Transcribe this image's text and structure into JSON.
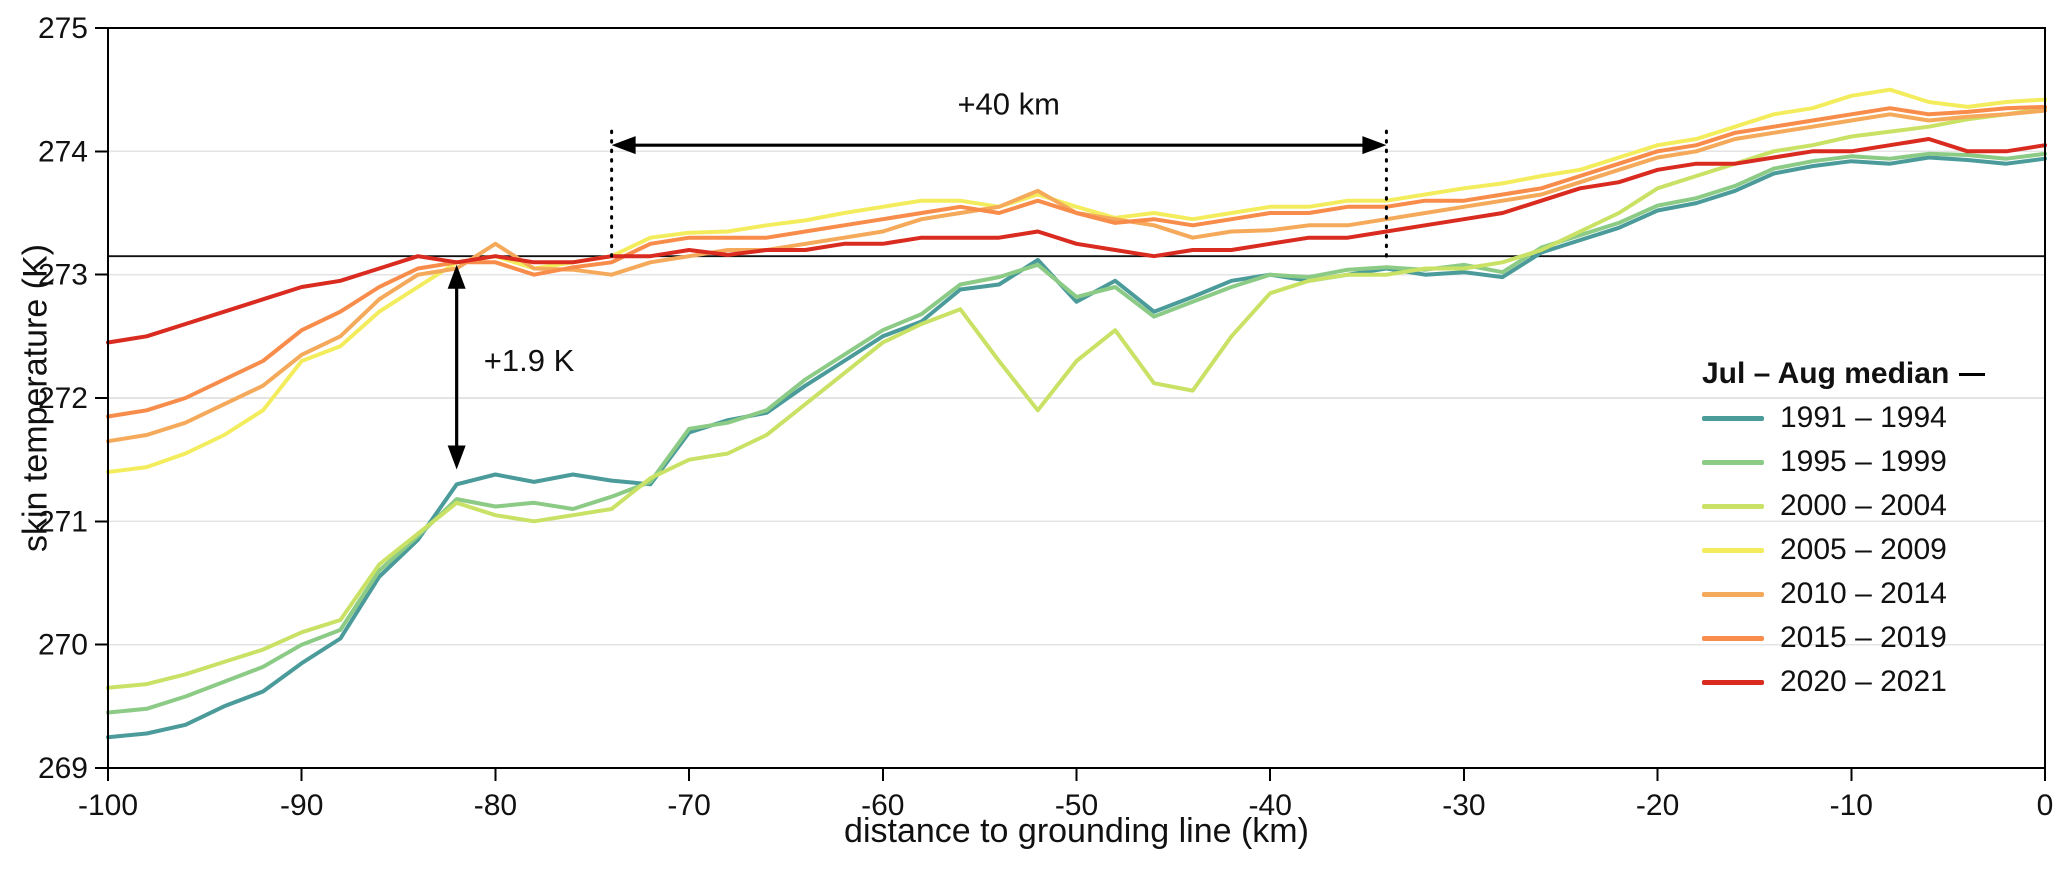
{
  "chart_data": {
    "type": "line",
    "xlabel": "distance to grounding line (km)",
    "ylabel": "skin temperature (K)",
    "xlim": [
      -100,
      0
    ],
    "ylim": [
      269,
      275
    ],
    "xticks": [
      -100,
      -90,
      -80,
      -70,
      -60,
      -50,
      -40,
      -30,
      -20,
      -10,
      0
    ],
    "yticks": [
      269,
      270,
      271,
      272,
      273,
      274,
      275
    ],
    "grid": "horizontal",
    "reference_line_y": 273.15,
    "legend_title": "Jul – Aug median",
    "legend_position": "right",
    "x": [
      -100,
      -98,
      -96,
      -94,
      -92,
      -90,
      -88,
      -86,
      -84,
      -82,
      -80,
      -78,
      -76,
      -74,
      -72,
      -70,
      -68,
      -66,
      -64,
      -62,
      -60,
      -58,
      -56,
      -54,
      -52,
      -50,
      -48,
      -46,
      -44,
      -42,
      -40,
      -38,
      -36,
      -34,
      -32,
      -30,
      -28,
      -26,
      -24,
      -22,
      -20,
      -18,
      -16,
      -14,
      -12,
      -10,
      -8,
      -6,
      -4,
      -2,
      0
    ],
    "series": [
      {
        "name": "1991 – 1994",
        "color": "#4B9B9B",
        "values": [
          269.25,
          269.28,
          269.35,
          269.5,
          269.62,
          269.85,
          270.05,
          270.55,
          270.85,
          271.3,
          271.38,
          271.32,
          271.38,
          271.33,
          271.3,
          271.72,
          271.82,
          271.88,
          272.1,
          272.3,
          272.5,
          272.62,
          272.88,
          272.92,
          273.12,
          272.78,
          272.95,
          272.7,
          272.82,
          272.95,
          273.0,
          272.95,
          273.0,
          273.05,
          273.0,
          273.02,
          272.98,
          273.18,
          273.28,
          273.38,
          273.52,
          273.58,
          273.68,
          273.82,
          273.88,
          273.92,
          273.9,
          273.95,
          273.93,
          273.9,
          273.94
        ]
      },
      {
        "name": "1995 – 1999",
        "color": "#8CCB86",
        "values": [
          269.45,
          269.48,
          269.58,
          269.7,
          269.82,
          270.0,
          270.12,
          270.6,
          270.88,
          271.18,
          271.12,
          271.15,
          271.1,
          271.2,
          271.32,
          271.75,
          271.8,
          271.9,
          272.15,
          272.35,
          272.55,
          272.68,
          272.92,
          272.98,
          273.08,
          272.82,
          272.9,
          272.66,
          272.78,
          272.9,
          273.0,
          272.98,
          273.04,
          273.06,
          273.04,
          273.08,
          273.02,
          273.22,
          273.32,
          273.42,
          273.56,
          273.62,
          273.72,
          273.86,
          273.92,
          273.96,
          273.94,
          273.98,
          273.97,
          273.94,
          273.98
        ]
      },
      {
        "name": "2000 – 2004",
        "color": "#C9E265",
        "values": [
          269.65,
          269.68,
          269.76,
          269.86,
          269.96,
          270.1,
          270.2,
          270.65,
          270.9,
          271.15,
          271.05,
          271.0,
          271.05,
          271.1,
          271.35,
          271.5,
          271.55,
          271.7,
          271.95,
          272.2,
          272.45,
          272.6,
          272.72,
          272.3,
          271.9,
          272.3,
          272.55,
          272.12,
          272.06,
          272.5,
          272.85,
          272.95,
          273.0,
          273.0,
          273.05,
          273.05,
          273.1,
          273.2,
          273.35,
          273.5,
          273.7,
          273.8,
          273.9,
          274.0,
          274.05,
          274.12,
          274.16,
          274.2,
          274.26,
          274.3,
          274.35
        ]
      },
      {
        "name": "2005 – 2009",
        "color": "#F3ED5E",
        "values": [
          271.4,
          271.44,
          271.55,
          271.7,
          271.9,
          272.3,
          272.42,
          272.7,
          272.9,
          273.1,
          273.15,
          273.05,
          273.1,
          273.15,
          273.3,
          273.34,
          273.35,
          273.4,
          273.44,
          273.5,
          273.55,
          273.6,
          273.6,
          273.55,
          273.65,
          273.55,
          273.46,
          273.5,
          273.45,
          273.5,
          273.55,
          273.55,
          273.6,
          273.6,
          273.65,
          273.7,
          273.74,
          273.8,
          273.85,
          273.95,
          274.05,
          274.1,
          274.2,
          274.3,
          274.35,
          274.45,
          274.5,
          274.4,
          274.36,
          274.4,
          274.42
        ]
      },
      {
        "name": "2010 – 2014",
        "color": "#F5A95A",
        "values": [
          271.65,
          271.7,
          271.8,
          271.95,
          272.1,
          272.35,
          272.5,
          272.8,
          273.0,
          273.05,
          273.25,
          273.05,
          273.04,
          273.0,
          273.1,
          273.15,
          273.2,
          273.2,
          273.25,
          273.3,
          273.35,
          273.45,
          273.5,
          273.55,
          273.68,
          273.5,
          273.45,
          273.4,
          273.3,
          273.35,
          273.36,
          273.4,
          273.4,
          273.45,
          273.5,
          273.55,
          273.6,
          273.65,
          273.75,
          273.85,
          273.95,
          274.0,
          274.1,
          274.15,
          274.2,
          274.25,
          274.3,
          274.25,
          274.28,
          274.3,
          274.33
        ]
      },
      {
        "name": "2015 – 2019",
        "color": "#F78C4B",
        "values": [
          271.85,
          271.9,
          272.0,
          272.15,
          272.3,
          272.55,
          272.7,
          272.9,
          273.05,
          273.1,
          273.1,
          273.0,
          273.06,
          273.1,
          273.25,
          273.3,
          273.3,
          273.3,
          273.35,
          273.4,
          273.45,
          273.5,
          273.55,
          273.5,
          273.6,
          273.5,
          273.42,
          273.45,
          273.4,
          273.45,
          273.5,
          273.5,
          273.55,
          273.55,
          273.6,
          273.6,
          273.65,
          273.7,
          273.8,
          273.9,
          274.0,
          274.05,
          274.15,
          274.2,
          274.25,
          274.3,
          274.35,
          274.3,
          274.32,
          274.35,
          274.36
        ]
      },
      {
        "name": "2020 – 2021",
        "color": "#D92B20",
        "values": [
          272.45,
          272.5,
          272.6,
          272.7,
          272.8,
          272.9,
          272.95,
          273.05,
          273.15,
          273.1,
          273.15,
          273.1,
          273.1,
          273.15,
          273.15,
          273.2,
          273.16,
          273.2,
          273.2,
          273.25,
          273.25,
          273.3,
          273.3,
          273.3,
          273.35,
          273.25,
          273.2,
          273.15,
          273.2,
          273.2,
          273.25,
          273.3,
          273.3,
          273.35,
          273.4,
          273.45,
          273.5,
          273.6,
          273.7,
          273.75,
          273.85,
          273.9,
          273.9,
          273.95,
          274.0,
          274.0,
          274.05,
          274.1,
          274.0,
          274.0,
          274.05
        ]
      }
    ],
    "annotations": [
      {
        "type": "h-arrow",
        "label": "+40 km",
        "x1": -74,
        "x2": -34,
        "y": 274.05,
        "label_x": -53.5,
        "label_y": 274.3
      },
      {
        "type": "dotted-v",
        "x": -74,
        "y1": 273.15,
        "y2": 274.18
      },
      {
        "type": "dotted-v",
        "x": -34,
        "y1": 273.15,
        "y2": 274.18
      },
      {
        "type": "v-arrow",
        "label": "+1.9 K",
        "x": -82,
        "y1": 271.42,
        "y2": 273.08,
        "label_x": -80.6,
        "label_y": 272.22
      }
    ]
  }
}
